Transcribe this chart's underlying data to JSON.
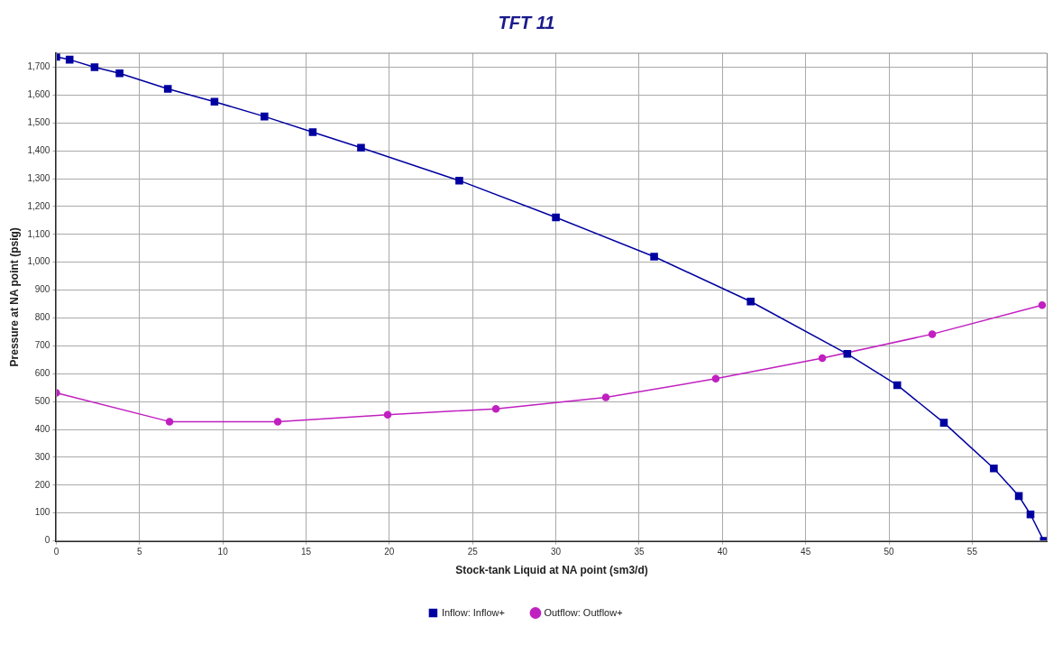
{
  "chart_data": {
    "type": "line",
    "title": "TFT 11",
    "xlabel": "Stock-tank Liquid at NA point (sm3/d)",
    "ylabel": "Pressure at NA point (psig)",
    "xlim": [
      0,
      59.5
    ],
    "xticks": [
      0,
      5,
      10,
      15,
      20,
      25,
      30,
      35,
      40,
      45,
      50,
      55
    ],
    "ylim": [
      0,
      1750
    ],
    "yticks": [
      0,
      100,
      200,
      300,
      400,
      500,
      600,
      700,
      800,
      900,
      {
        "value": 1000,
        "label": "1,000"
      },
      {
        "value": 1100,
        "label": "1,100"
      },
      {
        "value": 1200,
        "label": "1,200"
      },
      {
        "value": 1300,
        "label": "1,300"
      },
      {
        "value": 1400,
        "label": "1,400"
      },
      {
        "value": 1500,
        "label": "1,500"
      },
      {
        "value": 1600,
        "label": "1,600"
      },
      {
        "value": 1700,
        "label": "1,700"
      }
    ],
    "grid": true,
    "legend": "bottom",
    "line_style": "solid",
    "series": [
      {
        "name": "Inflow: Inflow+",
        "color": "#0000a0",
        "marker": "square",
        "x": [
          0,
          0.8,
          2.3,
          3.8,
          6.7,
          9.5,
          12.5,
          15.4,
          18.3,
          24.2,
          30.0,
          35.9,
          41.7,
          47.5,
          50.5,
          53.3,
          56.3,
          57.8,
          58.5,
          59.3
        ],
        "values": [
          1737,
          1727,
          1700,
          1678,
          1622,
          1576,
          1523,
          1467,
          1411,
          1293,
          1161,
          1020,
          859,
          671,
          559,
          424,
          260,
          161,
          95,
          0
        ]
      },
      {
        "name": "Outflow: Outflow+",
        "color": "#c020c0",
        "marker": "circle",
        "x": [
          0,
          6.8,
          13.3,
          19.9,
          26.4,
          33.0,
          39.6,
          46.0,
          52.6,
          59.2
        ],
        "values": [
          531,
          428,
          428,
          453,
          474,
          515,
          582,
          656,
          742,
          846
        ]
      }
    ]
  }
}
